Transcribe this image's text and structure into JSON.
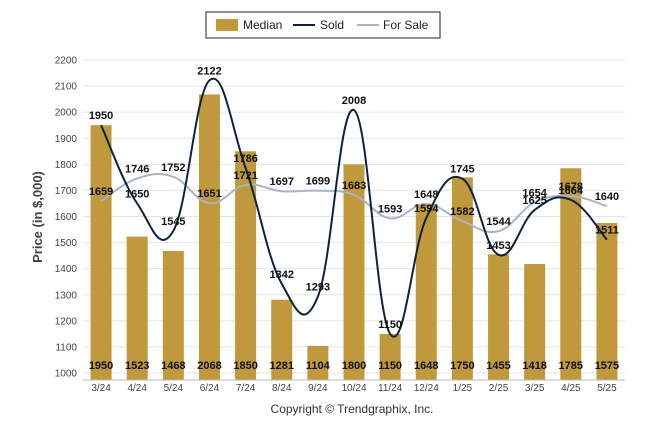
{
  "chart_data": {
    "type": "bar",
    "categories": [
      "3/24",
      "4/24",
      "5/24",
      "6/24",
      "7/24",
      "8/24",
      "9/24",
      "10/24",
      "11/24",
      "12/24",
      "1/25",
      "2/25",
      "3/25",
      "4/25",
      "5/25"
    ],
    "ylabel": "Price (in $,000)",
    "ylim": [
      1000,
      2200
    ],
    "yticks": [
      1000,
      1100,
      1200,
      1300,
      1400,
      1500,
      1600,
      1700,
      1800,
      1900,
      2000,
      2100,
      2200
    ],
    "grid": true,
    "legend": "top-center",
    "series": [
      {
        "name": "Median",
        "type": "bar",
        "color": "#c0993c",
        "values": [
          1950,
          1523,
          1468,
          2068,
          1850,
          1281,
          1104,
          1800,
          1150,
          1648,
          1750,
          1455,
          1418,
          1785,
          1575
        ]
      },
      {
        "name": "Sold",
        "type": "line",
        "color": "#0c2340",
        "values": [
          1950,
          1650,
          1545,
          2122,
          1786,
          1342,
          1293,
          2008,
          1150,
          1594,
          1745,
          1453,
          1625,
          1664,
          1511
        ]
      },
      {
        "name": "For Sale",
        "type": "line",
        "color": "#a9b4c8",
        "values": [
          1659,
          1746,
          1752,
          1651,
          1721,
          1697,
          1699,
          1683,
          1593,
          1648,
          1582,
          1544,
          1654,
          1678,
          1640
        ]
      }
    ]
  },
  "footer": {
    "copyright": "Copyright © Trendgraphix, Inc."
  }
}
